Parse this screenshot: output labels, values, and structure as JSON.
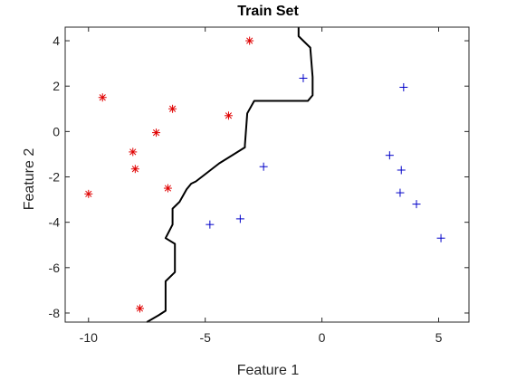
{
  "chart_data": {
    "type": "scatter",
    "title": "Train Set",
    "xlabel": "Feature 1",
    "ylabel": "Feature 2",
    "xlim": [
      -11,
      6.3
    ],
    "ylim": [
      -8.4,
      4.6
    ],
    "xticks": [
      -10,
      -5,
      0,
      5
    ],
    "yticks": [
      -8,
      -6,
      -4,
      -2,
      0,
      2,
      4
    ],
    "grid": false,
    "series": [
      {
        "marker": "asterisk",
        "color": "#e00000",
        "points": [
          [
            -3.1,
            4.0
          ],
          [
            -9.4,
            1.5
          ],
          [
            -6.4,
            1.0
          ],
          [
            -4.0,
            0.7
          ],
          [
            -7.1,
            -0.05
          ],
          [
            -8.1,
            -0.9
          ],
          [
            -8.0,
            -1.65
          ],
          [
            -10.0,
            -2.75
          ],
          [
            -6.6,
            -2.5
          ],
          [
            -7.8,
            -7.8
          ]
        ]
      },
      {
        "marker": "plus",
        "color": "#0000c8",
        "points": [
          [
            -0.8,
            2.35
          ],
          [
            3.5,
            1.95
          ],
          [
            -2.5,
            -1.55
          ],
          [
            2.9,
            -1.05
          ],
          [
            3.4,
            -1.7
          ],
          [
            3.35,
            -2.7
          ],
          [
            4.05,
            -3.2
          ],
          [
            -3.5,
            -3.85
          ],
          [
            -4.8,
            -4.1
          ],
          [
            5.1,
            -4.7
          ]
        ]
      }
    ],
    "boundary": [
      [
        -1.0,
        4.6
      ],
      [
        -1.0,
        4.2
      ],
      [
        -0.5,
        3.7
      ],
      [
        -0.4,
        2.4
      ],
      [
        -0.4,
        1.6
      ],
      [
        -0.6,
        1.35
      ],
      [
        -2.9,
        1.35
      ],
      [
        -3.2,
        0.8
      ],
      [
        -3.3,
        -0.6
      ],
      [
        -3.3,
        -0.7
      ],
      [
        -4.4,
        -1.4
      ],
      [
        -5.4,
        -2.2
      ],
      [
        -5.6,
        -2.3
      ],
      [
        -5.8,
        -2.55
      ],
      [
        -6.1,
        -3.1
      ],
      [
        -6.4,
        -3.4
      ],
      [
        -6.4,
        -4.1
      ],
      [
        -6.7,
        -4.7
      ],
      [
        -6.3,
        -4.95
      ],
      [
        -6.3,
        -6.2
      ],
      [
        -6.7,
        -6.6
      ],
      [
        -6.7,
        -7.9
      ],
      [
        -7.0,
        -8.1
      ],
      [
        -7.5,
        -8.4
      ]
    ]
  }
}
